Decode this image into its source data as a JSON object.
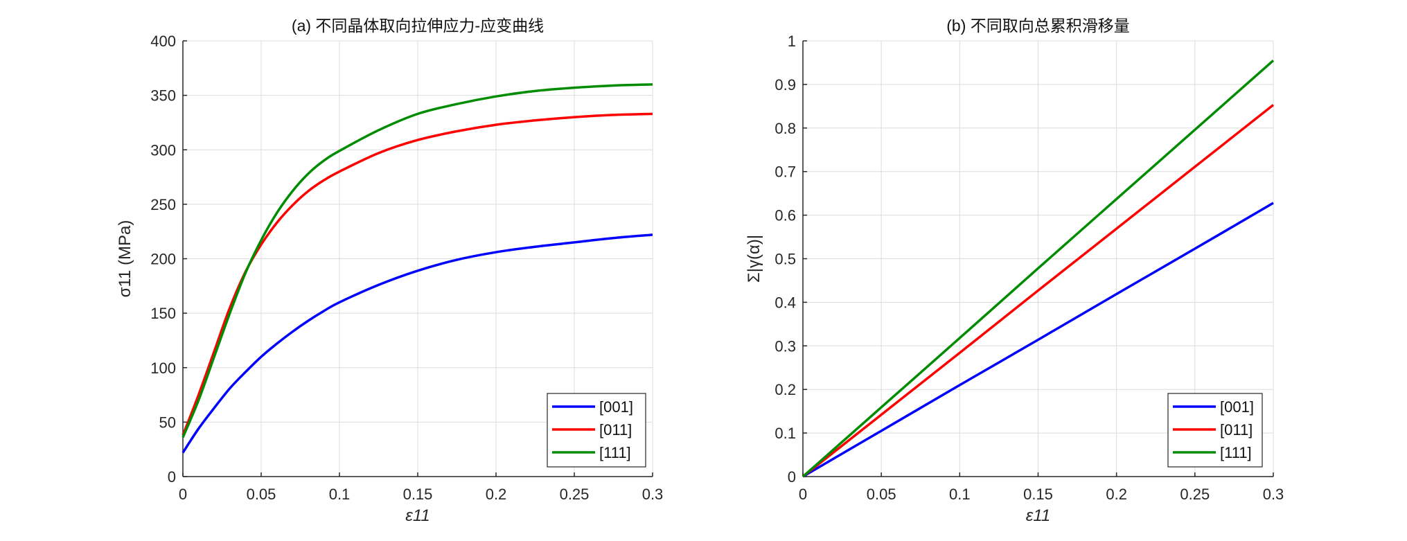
{
  "chart_data": [
    {
      "type": "line",
      "title": "(a) 不同晶体取向拉伸应力-应变曲线",
      "xlabel": "ε11",
      "xlabel_main": "ε",
      "xlabel_sub": "11",
      "ylabel": "σ11 (MPa)",
      "ylabel_main": "σ",
      "ylabel_sub": "11",
      "ylabel_rest": " (MPa)",
      "xlim": [
        0,
        0.3
      ],
      "ylim": [
        0,
        400
      ],
      "xticks": [
        "0",
        "0.05",
        "0.1",
        "0.15",
        "0.2",
        "0.25",
        "0.3"
      ],
      "xtick_values": [
        0,
        0.05,
        0.1,
        0.15,
        0.2,
        0.25,
        0.3
      ],
      "yticks": [
        "0",
        "50",
        "100",
        "150",
        "200",
        "250",
        "300",
        "350",
        "400"
      ],
      "ytick_values": [
        0,
        50,
        100,
        150,
        200,
        250,
        300,
        350,
        400
      ],
      "grid": true,
      "legend_position": "bottom-right",
      "x": [
        0,
        0.01,
        0.02,
        0.03,
        0.04,
        0.05,
        0.06,
        0.07,
        0.08,
        0.09,
        0.1,
        0.125,
        0.15,
        0.175,
        0.2,
        0.225,
        0.25,
        0.275,
        0.3
      ],
      "series": [
        {
          "name": "[001]",
          "color": "#0000ff",
          "values": [
            22,
            44,
            63,
            81,
            96,
            110,
            122,
            133,
            143,
            152,
            160,
            176,
            189,
            199,
            206,
            211,
            215,
            219,
            222
          ]
        },
        {
          "name": "[011]",
          "color": "#ff0000",
          "values": [
            38,
            75,
            115,
            155,
            188,
            213,
            233,
            249,
            262,
            272,
            280,
            297,
            309,
            317,
            323,
            327,
            330,
            332,
            333
          ]
        },
        {
          "name": "[111]",
          "color": "#008c00",
          "values": [
            36,
            70,
            110,
            150,
            187,
            217,
            242,
            262,
            278,
            290,
            299,
            318,
            333,
            342,
            349,
            354,
            357,
            359,
            360
          ]
        }
      ]
    },
    {
      "type": "line",
      "title": "(b) 不同取向总累积滑移量",
      "xlabel": "ε11",
      "xlabel_main": "ε",
      "xlabel_sub": "11",
      "ylabel": "Σ|γ(α)|",
      "ylabel_main": "Σ|γ",
      "ylabel_sup": "(α)",
      "ylabel_end": "|",
      "xlim": [
        0,
        0.3
      ],
      "ylim": [
        0,
        1
      ],
      "xticks": [
        "0",
        "0.05",
        "0.1",
        "0.15",
        "0.2",
        "0.25",
        "0.3"
      ],
      "xtick_values": [
        0,
        0.05,
        0.1,
        0.15,
        0.2,
        0.25,
        0.3
      ],
      "yticks": [
        "0",
        "0.1",
        "0.2",
        "0.3",
        "0.4",
        "0.5",
        "0.6",
        "0.7",
        "0.8",
        "0.9",
        "1"
      ],
      "ytick_values": [
        0,
        0.1,
        0.2,
        0.3,
        0.4,
        0.5,
        0.6,
        0.7,
        0.8,
        0.9,
        1
      ],
      "grid": true,
      "legend_position": "bottom-right",
      "x": [
        0,
        0.05,
        0.1,
        0.15,
        0.2,
        0.25,
        0.3
      ],
      "series": [
        {
          "name": "[001]",
          "color": "#0000ff",
          "values": [
            0,
            0.105,
            0.21,
            0.314,
            0.419,
            0.523,
            0.628
          ]
        },
        {
          "name": "[011]",
          "color": "#ff0000",
          "values": [
            0,
            0.142,
            0.284,
            0.427,
            0.569,
            0.711,
            0.853
          ]
        },
        {
          "name": "[111]",
          "color": "#008c00",
          "values": [
            0,
            0.159,
            0.318,
            0.478,
            0.637,
            0.796,
            0.955
          ]
        }
      ]
    }
  ]
}
